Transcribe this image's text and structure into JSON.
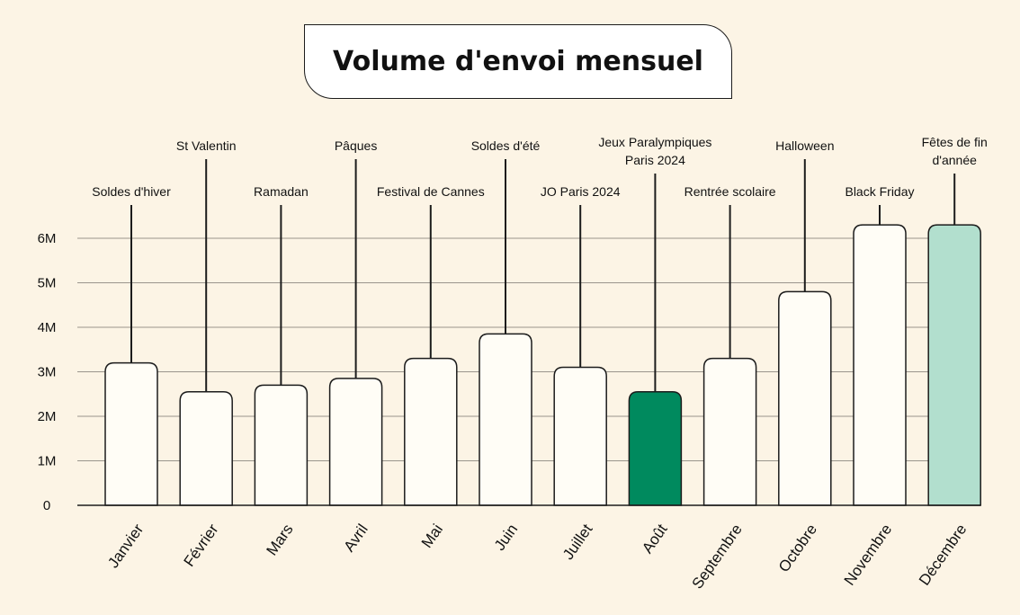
{
  "chart_data": {
    "type": "bar",
    "title": "Volume d'envoi mensuel",
    "xlabel": "",
    "ylabel": "",
    "ylim": [
      0,
      6.6
    ],
    "yticks": [
      {
        "value": 0,
        "label": "0"
      },
      {
        "value": 1,
        "label": "1M"
      },
      {
        "value": 2,
        "label": "2M"
      },
      {
        "value": 3,
        "label": "3M"
      },
      {
        "value": 4,
        "label": "4M"
      },
      {
        "value": 5,
        "label": "5M"
      },
      {
        "value": 6,
        "label": "6M"
      }
    ],
    "grid": true,
    "categories": [
      "Janvier",
      "Février",
      "Mars",
      "Avril",
      "Mai",
      "Juin",
      "Juillet",
      "Août",
      "Septembre",
      "Octobre",
      "Novembre",
      "Décembre"
    ],
    "values": [
      3.2,
      2.55,
      2.7,
      2.85,
      3.3,
      3.85,
      3.1,
      2.55,
      3.3,
      4.8,
      6.3,
      6.3
    ],
    "annotations": [
      [
        "Soldes d'hiver"
      ],
      [
        "St Valentin"
      ],
      [
        "Ramadan"
      ],
      [
        "Pâques"
      ],
      [
        "Festival de Cannes"
      ],
      [
        "Soldes d'été"
      ],
      [
        "JO Paris 2024"
      ],
      [
        "Jeux Paralympiques",
        "Paris 2024"
      ],
      [
        "Rentrée scolaire"
      ],
      [
        "Halloween"
      ],
      [
        "Black Friday"
      ],
      [
        "Fêtes de fin",
        "d'année"
      ]
    ],
    "colors": {
      "background": "#fcf4e5",
      "bar_default": "#fffdf6",
      "bar_highlight_aout": "#008a5e",
      "bar_highlight_decembre": "#b2dfce",
      "outline": "#1c1c1c",
      "grid": "#9a958c",
      "text": "#111111"
    }
  }
}
